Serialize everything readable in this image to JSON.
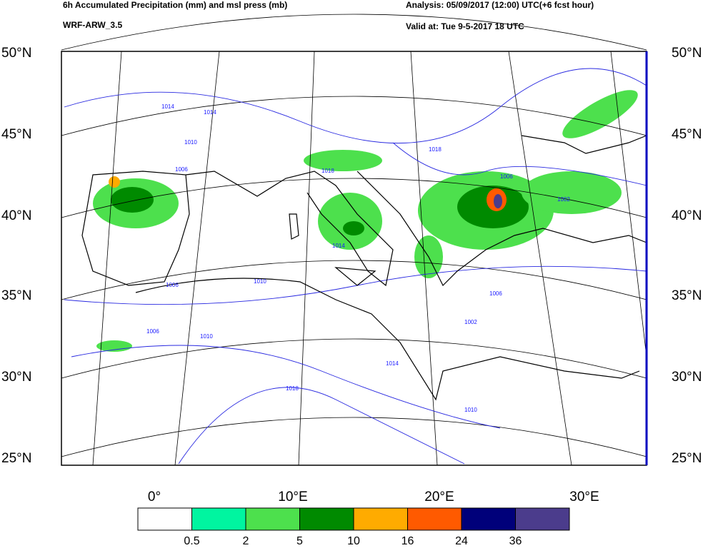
{
  "header": {
    "title": "6h Accumulated Precipitation (mm) and msl press (mb)",
    "model": "WRF-ARW_3.5",
    "analysis": "Analysis: 05/09/2017 (12:00) UTC(+6 fcst hour)",
    "valid": "Valid at: Tue 9-5-2017  18 UTC"
  },
  "map": {
    "lat_labels": [
      "50°N",
      "45°N",
      "40°N",
      "35°N",
      "30°N",
      "25°N"
    ],
    "lon_labels": [
      "0°",
      "10°E",
      "20°E",
      "30°E"
    ],
    "isobar_labels": [
      "1014",
      "1010",
      "1006",
      "1014",
      "1018",
      "1006",
      "1002",
      "1014",
      "1006",
      "1010",
      "1014",
      "1010",
      "1018",
      "1006",
      "1002",
      "1006",
      "1010",
      "1018"
    ]
  },
  "legend": {
    "colors": [
      "#ffffff",
      "#00f5a0",
      "#4de04d",
      "#008a00",
      "#ffab00",
      "#ff5a00",
      "#00007a",
      "#4b3c8c"
    ],
    "bounds": [
      0.5,
      2,
      5,
      10,
      16,
      24,
      36
    ]
  }
}
